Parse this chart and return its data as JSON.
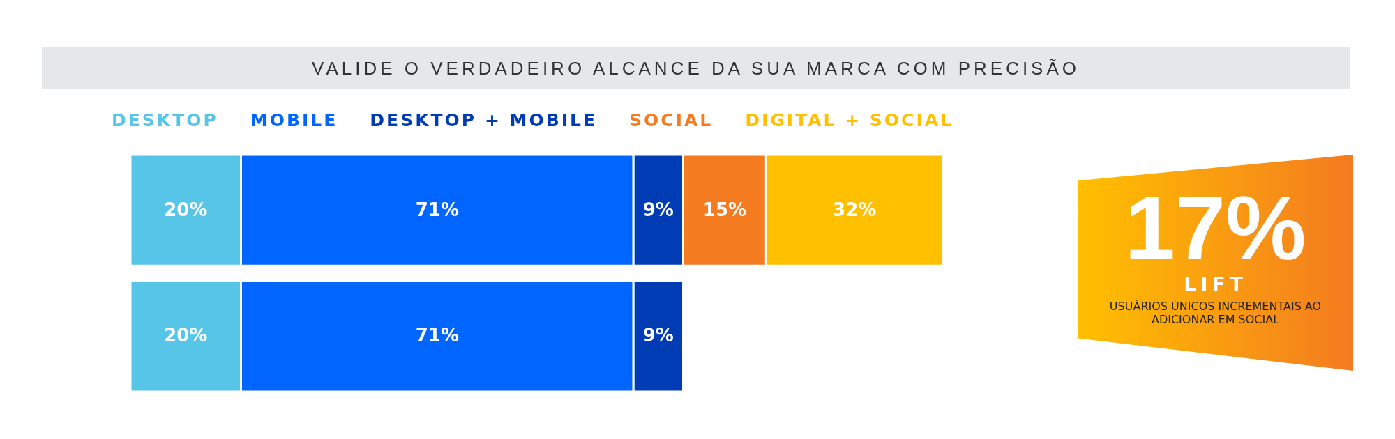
{
  "chart_data": {
    "type": "bar",
    "title": "VALIDE O VERDADEIRO ALCANCE DA SUA MARCA COM PRECISÃO",
    "orientation": "horizontal",
    "stacked": true,
    "legend": "top",
    "tick_labels": false,
    "categories": [
      null,
      null
    ],
    "series": [
      {
        "name": "DESKTOP",
        "color": "#56c5e8",
        "values": [
          20,
          20
        ],
        "value_labels": [
          "20%",
          "20%"
        ]
      },
      {
        "name": "MOBILE",
        "color": "#0066ff",
        "values": [
          71,
          71
        ],
        "value_labels": [
          "71%",
          "71%"
        ]
      },
      {
        "name": "DESKTOP + MOBILE",
        "color": "#003cb4",
        "values": [
          9,
          9
        ],
        "value_labels": [
          "9%",
          "9%"
        ]
      },
      {
        "name": "SOCIAL",
        "color": "#f47b20",
        "values": [
          15,
          null
        ],
        "value_labels": [
          "15%",
          null
        ]
      },
      {
        "name": "DIGITAL + SOCIAL",
        "color": "#ffc000",
        "values": [
          32,
          null
        ],
        "value_labels": [
          "32%",
          null
        ]
      }
    ],
    "annotations": [
      "17%",
      "LIFT",
      "USUÁRIOS ÚNICOS INCREMENTAIS AO ADICIONAR EM SOCIAL"
    ]
  }
}
